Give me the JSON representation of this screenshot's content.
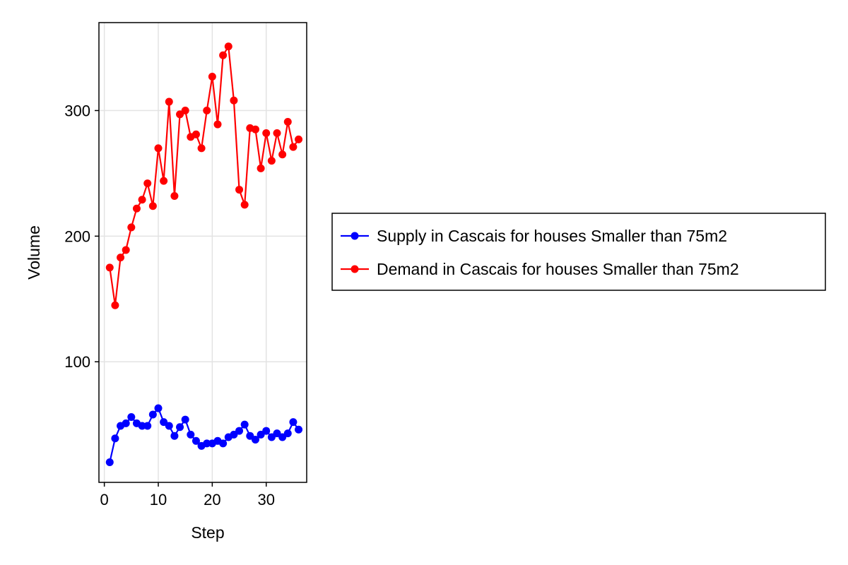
{
  "chart_data": {
    "type": "line",
    "xlabel": "Step",
    "ylabel": "Volume",
    "xlim": [
      -1,
      37.5
    ],
    "ylim": [
      4,
      370
    ],
    "xticks": [
      0,
      10,
      20,
      30
    ],
    "yticks": [
      100,
      200,
      300
    ],
    "xtick_labels": [
      "0",
      "10",
      "20",
      "30"
    ],
    "ytick_labels": [
      "100",
      "200",
      "300"
    ],
    "grid": true,
    "legend_position": "right",
    "x": [
      1,
      2,
      3,
      4,
      5,
      6,
      7,
      8,
      9,
      10,
      11,
      12,
      13,
      14,
      15,
      16,
      17,
      18,
      19,
      20,
      21,
      22,
      23,
      24,
      25,
      26,
      27,
      28,
      29,
      30,
      31,
      32,
      33,
      34,
      35,
      36
    ],
    "series": [
      {
        "name": "Supply in Cascais for houses Smaller than 75m2",
        "color": "#0000ff",
        "values": [
          20,
          39,
          49,
          51,
          56,
          51,
          49,
          49,
          58,
          63,
          52,
          49,
          41,
          48,
          54,
          42,
          37,
          33,
          35,
          35,
          37,
          35,
          40,
          42,
          45,
          50,
          41,
          38,
          42,
          45,
          40,
          43,
          40,
          43,
          52,
          46
        ]
      },
      {
        "name": "Demand in Cascais for houses Smaller than 75m2",
        "color": "#ff0000",
        "values": [
          175,
          145,
          183,
          189,
          207,
          222,
          229,
          242,
          224,
          270,
          244,
          307,
          232,
          297,
          300,
          279,
          281,
          270,
          300,
          327,
          289,
          344,
          351,
          308,
          237,
          225,
          286,
          285,
          254,
          282,
          260,
          282,
          265,
          291,
          271,
          277
        ]
      }
    ]
  }
}
